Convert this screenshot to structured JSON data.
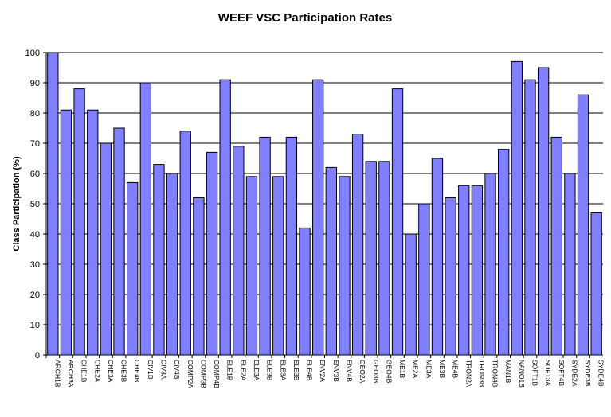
{
  "chart_data": {
    "type": "bar",
    "title": "WEEF VSC Participation Rates",
    "xlabel": "",
    "ylabel": "Class Participation (%)",
    "ylim": [
      0,
      100
    ],
    "yticks": [
      0,
      10,
      20,
      30,
      40,
      50,
      60,
      70,
      80,
      90,
      100
    ],
    "grid": true,
    "bar_color": "#8080ff",
    "categories": [
      "ARCH1B",
      "ARCH3A",
      "CHE1B",
      "CHE2A",
      "CHE3A",
      "CHE3B",
      "CHE4B",
      "CIV1B",
      "CIV3A",
      "CIV4B",
      "COMP2A",
      "COMP3B",
      "COMP4B",
      "ELE1B",
      "ELE2A",
      "ELE3A",
      "ELE3B",
      "ELE3A",
      "ELE3B",
      "ELE4B",
      "ENV2A",
      "ENV3B",
      "ENV4B",
      "GEO2A",
      "GEO3B",
      "GEO4B",
      "ME1B",
      "ME2A",
      "ME3A",
      "ME3B",
      "ME4B",
      "TRON2A",
      "TRON3B",
      "TRON4B",
      "MAN1B",
      "NANO1B",
      "SOFT1B",
      "SOFT3A",
      "SOFT4B",
      "SYDE2A",
      "SYDE3B",
      "SYDE4B"
    ],
    "values": [
      100,
      81,
      88,
      81,
      70,
      75,
      57,
      90,
      63,
      60,
      74,
      52,
      67,
      91,
      69,
      59,
      72,
      59,
      72,
      42,
      91,
      62,
      59,
      73,
      64,
      64,
      88,
      40,
      50,
      65,
      52,
      56,
      56,
      60,
      68,
      97,
      91,
      95,
      72,
      60,
      86,
      47
    ]
  }
}
